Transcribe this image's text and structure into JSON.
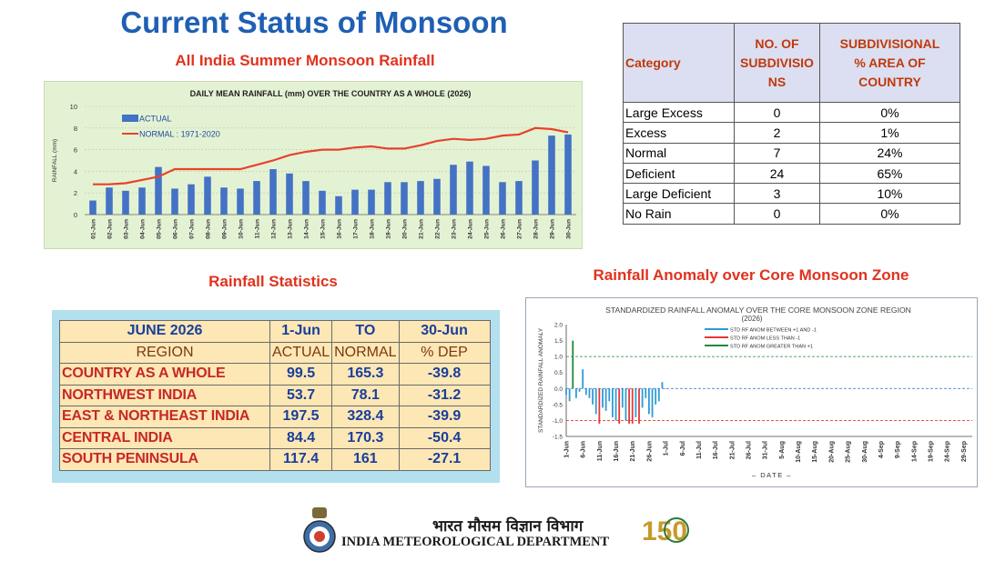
{
  "header": {
    "title": "Current Status of Monsoon"
  },
  "rainfall_chart": {
    "caption": "All India Summer Monsoon Rainfall"
  },
  "category_table": {
    "headers": [
      "Category",
      "NO. OF SUBDIVISIO NS",
      "SUBDIVISIONAL % AREA OF COUNTRY"
    ],
    "header_lines": [
      [
        "Category"
      ],
      [
        "NO. OF",
        "SUBDIVISIO",
        "NS"
      ],
      [
        "SUBDIVISIONAL",
        "% AREA OF",
        "COUNTRY"
      ]
    ],
    "rows": [
      [
        "Large Excess",
        "0",
        "0%"
      ],
      [
        "Excess",
        "2",
        "1%"
      ],
      [
        "Normal",
        "7",
        "24%"
      ],
      [
        "Deficient",
        "24",
        "65%"
      ],
      [
        "Large Deficient",
        "3",
        "10%"
      ],
      [
        "No Rain",
        "0",
        "0%"
      ]
    ]
  },
  "stats": {
    "caption": "Rainfall Statistics",
    "header1": [
      "JUNE 2026",
      "1-Jun",
      "TO",
      "30-Jun"
    ],
    "header2": [
      "REGION",
      "ACTUAL",
      "NORMAL",
      "% DEP"
    ],
    "rows": [
      [
        "COUNTRY AS A WHOLE",
        "99.5",
        "165.3",
        "-39.8"
      ],
      [
        "NORTHWEST INDIA",
        "53.7",
        "78.1",
        "-31.2"
      ],
      [
        "EAST & NORTHEAST INDIA",
        "197.5",
        "328.4",
        "-39.9"
      ],
      [
        "CENTRAL INDIA",
        "84.4",
        "170.3",
        "-50.4"
      ],
      [
        "SOUTH PENINSULA",
        "117.4",
        "161",
        "-27.1"
      ]
    ]
  },
  "anomaly_chart": {
    "caption": "Rainfall Anomaly over Core Monsoon Zone"
  },
  "footer": {
    "hindi_name": "भारत मौसम विज्ञान विभाग",
    "english_name": "INDIA METEOROLOGICAL DEPARTMENT",
    "badge_number": "150"
  },
  "colors": {
    "title": "#1f5fb4",
    "caption": "#e0321e",
    "bar": "#4472c4",
    "normal_line": "#e8422c",
    "anom_blue": "#2e9bd6",
    "anom_red": "#e53935",
    "anom_green": "#1e8a3a"
  },
  "chart_data": [
    {
      "type": "bar",
      "title": "DAILY MEAN RAINFALL (mm) OVER THE COUNTRY AS A WHOLE  (2026)",
      "ylabel": "RAINFALL (mm)",
      "ylim": [
        0,
        10
      ],
      "yticks": [
        0,
        2,
        4,
        6,
        8,
        10
      ],
      "grid": true,
      "legend": "top-left",
      "categories": [
        "01-Jun",
        "02-Jun",
        "03-Jun",
        "04-Jun",
        "05-Jun",
        "06-Jun",
        "07-Jun",
        "08-Jun",
        "09-Jun",
        "10-Jun",
        "11-Jun",
        "12-Jun",
        "13-Jun",
        "14-Jun",
        "15-Jun",
        "16-Jun",
        "17-Jun",
        "18-Jun",
        "19-Jun",
        "20-Jun",
        "21-Jun",
        "22-Jun",
        "23-Jun",
        "24-Jun",
        "25-Jun",
        "26-Jun",
        "27-Jun",
        "28-Jun",
        "29-Jun",
        "30-Jun"
      ],
      "series": [
        {
          "name": "ACTUAL",
          "kind": "bar",
          "values": [
            1.3,
            2.5,
            2.2,
            2.5,
            4.4,
            2.4,
            2.8,
            3.5,
            2.5,
            2.4,
            3.1,
            4.2,
            3.8,
            3.1,
            2.2,
            1.7,
            2.3,
            2.3,
            3.0,
            3.0,
            3.1,
            3.3,
            4.6,
            4.9,
            4.5,
            3.0,
            3.1,
            5.0,
            7.3,
            7.4
          ]
        },
        {
          "name": "NORMAL : 1971-2020",
          "kind": "line",
          "values": [
            2.8,
            2.8,
            2.9,
            3.2,
            3.5,
            4.2,
            4.2,
            4.2,
            4.2,
            4.2,
            4.6,
            5.0,
            5.5,
            5.8,
            6.0,
            6.0,
            6.2,
            6.3,
            6.1,
            6.1,
            6.4,
            6.8,
            7.0,
            6.9,
            7.0,
            7.3,
            7.4,
            8.0,
            7.9,
            7.6
          ]
        }
      ]
    },
    {
      "type": "bar",
      "title": "STANDARDIZED RAINFALL ANOMALY  OVER THE CORE MONSOON ZONE REGION",
      "subtitle": "(2026)",
      "xlabel": "DATE",
      "ylabel": "STANDARDIZED RAINFALL ANOMALY",
      "ylim": [
        -1.5,
        2.0
      ],
      "yticks": [
        -1.5,
        -1.0,
        -0.5,
        0.0,
        0.5,
        1.0,
        1.5,
        2.0
      ],
      "reference_lines": [
        1.0,
        -1.0
      ],
      "legend": "top-center",
      "x_tick_labels": [
        "1-Jun",
        "6-Jun",
        "11-Jun",
        "16-Jun",
        "21-Jun",
        "26-Jun",
        "1-Jul",
        "6-Jul",
        "11-Jul",
        "16-Jul",
        "21-Jul",
        "26-Jul",
        "31-Jul",
        "5-Aug",
        "10-Aug",
        "15-Aug",
        "20-Aug",
        "25-Aug",
        "30-Aug",
        "4-Sep",
        "9-Sep",
        "14-Sep",
        "19-Sep",
        "24-Sep",
        "29-Sep"
      ],
      "series": [
        {
          "name": "STD RF ANOM BETWEEN +1 AND -1",
          "color": "#2e9bd6"
        },
        {
          "name": "STD RF ANOM LESS THAN -1",
          "color": "#e53935"
        },
        {
          "name": "STD RF ANOM GREATER THAN +1",
          "color": "#1e8a3a"
        }
      ],
      "x": [
        "1-Jun",
        "2-Jun",
        "3-Jun",
        "4-Jun",
        "5-Jun",
        "6-Jun",
        "7-Jun",
        "8-Jun",
        "9-Jun",
        "10-Jun",
        "11-Jun",
        "12-Jun",
        "13-Jun",
        "14-Jun",
        "15-Jun",
        "16-Jun",
        "17-Jun",
        "18-Jun",
        "19-Jun",
        "20-Jun",
        "21-Jun",
        "22-Jun",
        "23-Jun",
        "24-Jun",
        "25-Jun",
        "26-Jun",
        "27-Jun",
        "28-Jun",
        "29-Jun",
        "30-Jun",
        "1-Jul"
      ],
      "values": [
        -0.2,
        -0.4,
        1.5,
        -0.3,
        -0.1,
        0.6,
        -0.2,
        -0.3,
        -0.5,
        -0.8,
        -1.1,
        -0.6,
        -0.7,
        -0.4,
        -0.9,
        -1.0,
        -1.1,
        -0.6,
        -1.0,
        -1.1,
        -1.1,
        -0.9,
        -1.1,
        -0.6,
        -0.3,
        -0.8,
        -0.9,
        -0.5,
        -0.4,
        0.2,
        0.0
      ]
    }
  ]
}
